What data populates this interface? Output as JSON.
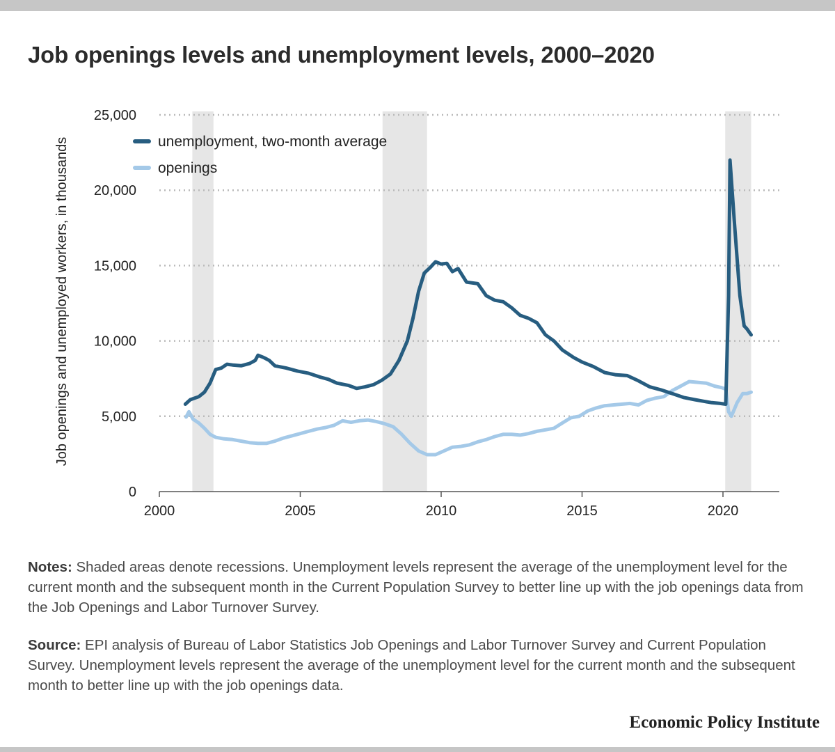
{
  "title": "Job openings levels and unemployment levels, 2000–2020",
  "notes": {
    "label": "Notes:",
    "text": "Shaded areas denote recessions. Unemployment levels represent the average of the unemployment level for the current month and the subsequent month in the Current Population Survey to better line up with the job openings data from the Job Openings and Labor Turnover Survey."
  },
  "source": {
    "label": "Source:",
    "text": "EPI analysis of Bureau of Labor Statistics Job Openings and Labor Turnover Survey and Current Population Survey. Unemployment levels represent the average of the unemployment level for the current month and the subsequent month to better line up with the job openings data."
  },
  "publisher": "Economic Policy Institute",
  "chart_data": {
    "type": "line",
    "title": "Job openings levels and unemployment levels, 2000–2020",
    "xlabel": "",
    "ylabel": "Job openings and unemployed workers, in thousands",
    "xlim": [
      2000,
      2022
    ],
    "ylim": [
      0,
      25000
    ],
    "x_ticks": [
      2000,
      2005,
      2010,
      2015,
      2020
    ],
    "x_tick_labels": [
      "2000",
      "2005",
      "2010",
      "2015",
      "2020"
    ],
    "y_ticks": [
      0,
      5000,
      10000,
      15000,
      20000,
      25000
    ],
    "y_tick_labels": [
      "0",
      "5,000",
      "10,000",
      "15,000",
      "20,000",
      "25,000"
    ],
    "grid": "horizontal dotted",
    "legend": "top-left",
    "recessions": [
      {
        "start": 2001.17,
        "end": 2001.92
      },
      {
        "start": 2007.92,
        "end": 2009.5
      },
      {
        "start": 2020.08,
        "end": 2021.0
      }
    ],
    "series": [
      {
        "name": "unemployment, two-month average",
        "color": "#275d80",
        "points": [
          [
            2000.92,
            5800
          ],
          [
            2001.1,
            6100
          ],
          [
            2001.4,
            6300
          ],
          [
            2001.6,
            6600
          ],
          [
            2001.8,
            7200
          ],
          [
            2002.0,
            8100
          ],
          [
            2002.2,
            8200
          ],
          [
            2002.4,
            8450
          ],
          [
            2002.6,
            8400
          ],
          [
            2002.9,
            8350
          ],
          [
            2003.2,
            8500
          ],
          [
            2003.4,
            8700
          ],
          [
            2003.5,
            9050
          ],
          [
            2003.7,
            8900
          ],
          [
            2003.9,
            8700
          ],
          [
            2004.1,
            8350
          ],
          [
            2004.5,
            8200
          ],
          [
            2004.9,
            8000
          ],
          [
            2005.3,
            7850
          ],
          [
            2005.7,
            7600
          ],
          [
            2006.0,
            7450
          ],
          [
            2006.3,
            7200
          ],
          [
            2006.7,
            7050
          ],
          [
            2007.0,
            6850
          ],
          [
            2007.3,
            6950
          ],
          [
            2007.6,
            7100
          ],
          [
            2007.9,
            7400
          ],
          [
            2008.2,
            7800
          ],
          [
            2008.5,
            8700
          ],
          [
            2008.8,
            10000
          ],
          [
            2009.0,
            11500
          ],
          [
            2009.2,
            13300
          ],
          [
            2009.4,
            14500
          ],
          [
            2009.6,
            14850
          ],
          [
            2009.8,
            15250
          ],
          [
            2010.0,
            15100
          ],
          [
            2010.2,
            15150
          ],
          [
            2010.4,
            14600
          ],
          [
            2010.6,
            14800
          ],
          [
            2010.9,
            13900
          ],
          [
            2011.3,
            13800
          ],
          [
            2011.6,
            13000
          ],
          [
            2011.9,
            12700
          ],
          [
            2012.2,
            12600
          ],
          [
            2012.5,
            12200
          ],
          [
            2012.8,
            11700
          ],
          [
            2013.1,
            11500
          ],
          [
            2013.4,
            11200
          ],
          [
            2013.7,
            10400
          ],
          [
            2014.0,
            10000
          ],
          [
            2014.3,
            9400
          ],
          [
            2014.7,
            8900
          ],
          [
            2015.0,
            8600
          ],
          [
            2015.4,
            8300
          ],
          [
            2015.8,
            7900
          ],
          [
            2016.2,
            7750
          ],
          [
            2016.6,
            7700
          ],
          [
            2017.0,
            7350
          ],
          [
            2017.4,
            6950
          ],
          [
            2017.8,
            6750
          ],
          [
            2018.2,
            6500
          ],
          [
            2018.6,
            6250
          ],
          [
            2019.0,
            6100
          ],
          [
            2019.3,
            6000
          ],
          [
            2019.6,
            5900
          ],
          [
            2019.9,
            5850
          ],
          [
            2020.1,
            5800
          ],
          [
            2020.2,
            13000
          ],
          [
            2020.25,
            22000
          ],
          [
            2020.4,
            18000
          ],
          [
            2020.6,
            13000
          ],
          [
            2020.75,
            11000
          ],
          [
            2020.85,
            10800
          ],
          [
            2021.0,
            10400
          ]
        ]
      },
      {
        "name": "openings",
        "color": "#a4c9e8",
        "points": [
          [
            2000.95,
            4950
          ],
          [
            2001.05,
            5300
          ],
          [
            2001.2,
            4800
          ],
          [
            2001.4,
            4550
          ],
          [
            2001.6,
            4200
          ],
          [
            2001.8,
            3800
          ],
          [
            2002.0,
            3600
          ],
          [
            2002.3,
            3500
          ],
          [
            2002.6,
            3450
          ],
          [
            2002.9,
            3350
          ],
          [
            2003.2,
            3250
          ],
          [
            2003.5,
            3200
          ],
          [
            2003.8,
            3200
          ],
          [
            2004.1,
            3350
          ],
          [
            2004.4,
            3550
          ],
          [
            2004.7,
            3700
          ],
          [
            2005.0,
            3850
          ],
          [
            2005.3,
            4000
          ],
          [
            2005.6,
            4150
          ],
          [
            2005.9,
            4250
          ],
          [
            2006.2,
            4400
          ],
          [
            2006.5,
            4700
          ],
          [
            2006.8,
            4600
          ],
          [
            2007.1,
            4700
          ],
          [
            2007.4,
            4750
          ],
          [
            2007.7,
            4650
          ],
          [
            2008.0,
            4500
          ],
          [
            2008.3,
            4300
          ],
          [
            2008.6,
            3800
          ],
          [
            2008.9,
            3200
          ],
          [
            2009.2,
            2700
          ],
          [
            2009.5,
            2450
          ],
          [
            2009.8,
            2450
          ],
          [
            2010.1,
            2700
          ],
          [
            2010.4,
            2950
          ],
          [
            2010.7,
            3000
          ],
          [
            2011.0,
            3100
          ],
          [
            2011.3,
            3300
          ],
          [
            2011.6,
            3450
          ],
          [
            2011.9,
            3650
          ],
          [
            2012.2,
            3800
          ],
          [
            2012.5,
            3800
          ],
          [
            2012.8,
            3750
          ],
          [
            2013.1,
            3850
          ],
          [
            2013.4,
            4000
          ],
          [
            2013.7,
            4100
          ],
          [
            2014.0,
            4200
          ],
          [
            2014.3,
            4550
          ],
          [
            2014.6,
            4900
          ],
          [
            2014.9,
            5000
          ],
          [
            2015.2,
            5350
          ],
          [
            2015.5,
            5550
          ],
          [
            2015.8,
            5700
          ],
          [
            2016.1,
            5750
          ],
          [
            2016.4,
            5800
          ],
          [
            2016.7,
            5850
          ],
          [
            2017.0,
            5750
          ],
          [
            2017.3,
            6050
          ],
          [
            2017.6,
            6200
          ],
          [
            2017.9,
            6300
          ],
          [
            2018.2,
            6700
          ],
          [
            2018.5,
            7000
          ],
          [
            2018.8,
            7300
          ],
          [
            2019.1,
            7250
          ],
          [
            2019.4,
            7200
          ],
          [
            2019.7,
            7000
          ],
          [
            2019.95,
            6900
          ],
          [
            2020.1,
            6800
          ],
          [
            2020.2,
            5300
          ],
          [
            2020.3,
            5000
          ],
          [
            2020.5,
            5900
          ],
          [
            2020.7,
            6500
          ],
          [
            2020.85,
            6500
          ],
          [
            2021.0,
            6600
          ]
        ]
      }
    ]
  }
}
